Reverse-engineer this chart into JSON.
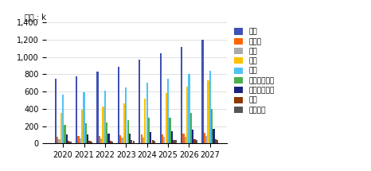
{
  "years": [
    2020,
    2021,
    2022,
    2023,
    2024,
    2025,
    2026,
    2027
  ],
  "series": {
    "미국": [
      750,
      780,
      830,
      890,
      965,
      1045,
      1115,
      1200
    ],
    "캐나다": [
      80,
      90,
      90,
      95,
      100,
      105,
      115,
      120
    ],
    "일본": [
      50,
      55,
      60,
      65,
      70,
      75,
      80,
      85
    ],
    "중국": [
      355,
      385,
      425,
      465,
      520,
      585,
      655,
      730
    ],
    "유럽": [
      560,
      590,
      610,
      650,
      700,
      750,
      800,
      845
    ],
    "아시아태평양": [
      210,
      230,
      245,
      265,
      300,
      300,
      355,
      395
    ],
    "라틴아메리카": [
      100,
      105,
      110,
      115,
      130,
      145,
      160,
      170
    ],
    "중동": [
      30,
      30,
      30,
      35,
      35,
      40,
      45,
      50
    ],
    "아프리카": [
      20,
      25,
      25,
      30,
      30,
      35,
      35,
      40
    ]
  },
  "colors": {
    "미국": "#3F51B5",
    "캐나다": "#FF6600",
    "일본": "#AAAAAA",
    "중국": "#FFC000",
    "유럽": "#4FC3F7",
    "아시아태평양": "#4CAF50",
    "라틴아메리카": "#1A237E",
    "중동": "#8B3A00",
    "아프리카": "#555555"
  },
  "ylabel": "단위 : k",
  "yticks": [
    0,
    200,
    400,
    600,
    800,
    1000,
    1200,
    1400
  ],
  "ylim": [
    0,
    1400
  ],
  "figsize": [
    4.66,
    2.15
  ],
  "dpi": 100
}
